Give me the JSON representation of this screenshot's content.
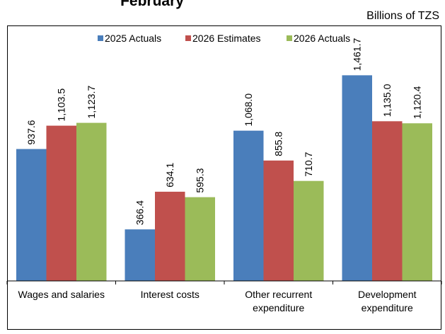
{
  "page": {
    "title": "February",
    "units": "Billions of TZS"
  },
  "chart_data": {
    "type": "bar",
    "title": "February",
    "ylabel": "Billions of TZS",
    "ylim": [
      0,
      1700
    ],
    "grid": false,
    "legend_position": "top",
    "categories": [
      [
        "Wages and salaries"
      ],
      [
        "Interest costs"
      ],
      [
        "Other recurrent",
        "expenditure"
      ],
      [
        "Development",
        "expenditure"
      ]
    ],
    "series": [
      {
        "name": "2025 Actuals",
        "color": "#4a7ebb",
        "values": [
          937.6,
          366.4,
          1068.0,
          1461.7
        ],
        "labels": [
          "937.6",
          "366.4",
          "1,068.0",
          "1,461.7"
        ]
      },
      {
        "name": "2026 Estimates",
        "color": "#c0504d",
        "values": [
          1103.5,
          634.1,
          855.8,
          1135.0
        ],
        "labels": [
          "1,103.5",
          "634.1",
          "855.8",
          "1,135.0"
        ]
      },
      {
        "name": "2026 Actuals",
        "color": "#9bbb59",
        "values": [
          1123.7,
          595.3,
          710.7,
          1120.4
        ],
        "labels": [
          "1,123.7",
          "595.3",
          "710.7",
          "1,120.4"
        ]
      }
    ]
  }
}
